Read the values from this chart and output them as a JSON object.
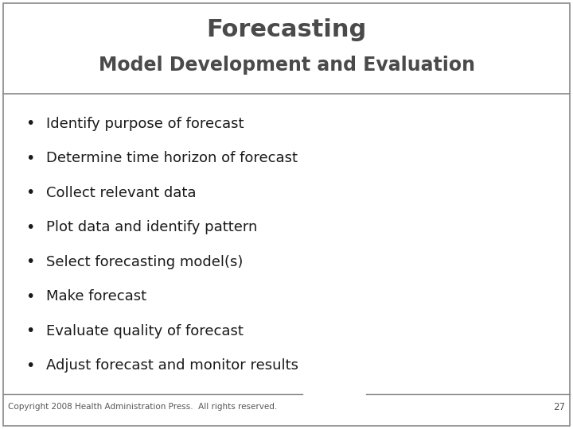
{
  "title_line1": "Forecasting",
  "title_line2": "Model Development and Evaluation",
  "bullet_items": [
    "Identify purpose of forecast",
    "Determine time horizon of forecast",
    "Collect relevant data",
    "Plot data and identify pattern",
    "Select forecasting model(s)",
    "Make forecast",
    "Evaluate quality of forecast",
    "Adjust forecast and monitor results"
  ],
  "footer_text": "Copyright 2008 Health Administration Press.  All rights reserved.",
  "page_number": "27",
  "background_color": "#ffffff",
  "title1_color": "#4a4a4a",
  "title2_color": "#4a4a4a",
  "bullet_color": "#1a1a1a",
  "footer_color": "#555555",
  "border_color": "#888888",
  "title1_fontsize": 22,
  "title2_fontsize": 17,
  "bullet_fontsize": 13,
  "footer_fontsize": 7.5
}
